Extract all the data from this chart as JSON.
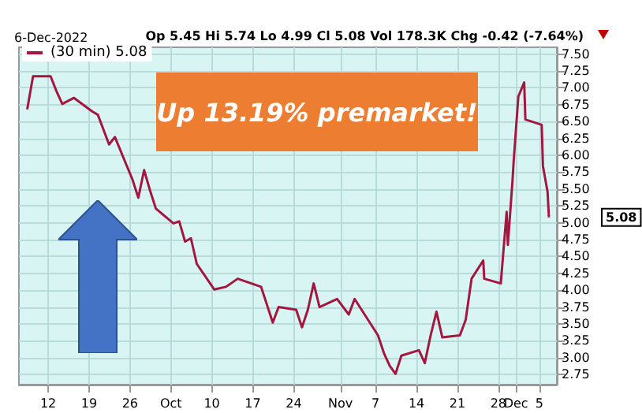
{
  "chart_data": {
    "type": "line",
    "title": "6-Dec-2022",
    "subtitle": "Op 5.45 Hi 5.74 Lo 4.99 Cl 5.08 Vol 178.3K Chg -0.42 (-7.64%)",
    "annotations": [
      "Up 13.19% premarket!",
      "5.08"
    ],
    "x": [
      "2022-09-08T10:00",
      "2022-09-09T10:00",
      "2022-09-12T10:00",
      "2022-09-13T10:00",
      "2022-09-14T10:00",
      "2022-09-16T10:00",
      "2022-09-19T12:00",
      "2022-09-20T12:00",
      "2022-09-22T10:00",
      "2022-09-23T10:00",
      "2022-09-26T10:00",
      "2022-09-27T10:00",
      "2022-09-28T10:00",
      "2022-09-29T10:00",
      "2022-09-30T10:00",
      "2022-10-03T10:00",
      "2022-10-04T10:00",
      "2022-10-05T10:00",
      "2022-10-06T10:00",
      "2022-10-07T10:00",
      "2022-10-10T10:00",
      "2022-10-12T10:00",
      "2022-10-14T10:00",
      "2022-10-18T10:00",
      "2022-10-20T10:00",
      "2022-10-21T10:00",
      "2022-10-24T10:00",
      "2022-10-25T10:00",
      "2022-10-26T10:00",
      "2022-10-27T10:00",
      "2022-10-28T10:00",
      "2022-10-31T10:00",
      "2022-11-02T10:00",
      "2022-11-03T10:00",
      "2022-11-07T10:00",
      "2022-11-08T10:00",
      "2022-11-09T10:00",
      "2022-11-10T10:00",
      "2022-11-11T10:00",
      "2022-11-14T10:00",
      "2022-11-15T10:00",
      "2022-11-16T10:00",
      "2022-11-17T10:00",
      "2022-11-18T10:00",
      "2022-11-21T10:00",
      "2022-11-22T10:00",
      "2022-11-23T10:00",
      "2022-11-25T10:00",
      "2022-11-25T14:00",
      "2022-11-28T10:00",
      "2022-11-29T10:00",
      "2022-11-29T15:00",
      "2022-11-30T10:00",
      "2022-11-30T15:00",
      "2022-12-01T10:00",
      "2022-12-02T10:00",
      "2022-12-02T15:00",
      "2022-12-05T10:00",
      "2022-12-05T15:00",
      "2022-12-06T10:00",
      "2022-12-06T15:30"
    ],
    "series": [
      {
        "name": "(30 min) 5.08",
        "color": "#a3173f",
        "values": [
          6.68,
          7.17,
          7.17,
          6.95,
          6.76,
          6.85,
          6.65,
          6.6,
          6.16,
          6.27,
          5.64,
          5.37,
          5.78,
          5.48,
          5.21,
          4.99,
          5.02,
          4.72,
          4.77,
          4.39,
          4.01,
          4.05,
          4.17,
          4.05,
          3.52,
          3.75,
          3.71,
          3.45,
          3.71,
          4.1,
          3.75,
          3.87,
          3.64,
          3.87,
          3.33,
          3.07,
          2.88,
          2.76,
          3.03,
          3.11,
          2.92,
          3.33,
          3.68,
          3.3,
          3.33,
          3.56,
          4.17,
          4.44,
          4.17,
          4.1,
          5.16,
          4.67,
          5.62,
          5.92,
          6.87,
          7.08,
          6.53,
          6.45,
          5.84,
          5.46,
          5.08
        ]
      }
    ],
    "xlim": [
      "2022-09-07",
      "2022-12-08"
    ],
    "xticks": [
      {
        "value": "2022-09-12",
        "label": "12"
      },
      {
        "value": "2022-09-19",
        "label": "19"
      },
      {
        "value": "2022-09-26",
        "label": "26"
      },
      {
        "value": "2022-10-03",
        "label": "Oct"
      },
      {
        "value": "2022-10-10",
        "label": "10"
      },
      {
        "value": "2022-10-17",
        "label": "17"
      },
      {
        "value": "2022-10-24",
        "label": "24"
      },
      {
        "value": "2022-11-01",
        "label": "Nov"
      },
      {
        "value": "2022-11-07",
        "label": "7"
      },
      {
        "value": "2022-11-14",
        "label": "14"
      },
      {
        "value": "2022-11-21",
        "label": "21"
      },
      {
        "value": "2022-11-28",
        "label": "28"
      },
      {
        "value": "2022-12-01",
        "label": "Dec"
      },
      {
        "value": "2022-12-05",
        "label": "5"
      }
    ],
    "ylim": [
      2.6,
      7.6
    ],
    "yticks": [
      {
        "value": 2.75,
        "label": "2.75"
      },
      {
        "value": 3,
        "label": "3.00"
      },
      {
        "value": 3.25,
        "label": "3.25"
      },
      {
        "value": 3.5,
        "label": "3.50"
      },
      {
        "value": 3.75,
        "label": "3.75"
      },
      {
        "value": 4,
        "label": "4.00"
      },
      {
        "value": 4.25,
        "label": "4.25"
      },
      {
        "value": 4.5,
        "label": "4.50"
      },
      {
        "value": 4.75,
        "label": "4.75"
      },
      {
        "value": 5,
        "label": "5.00"
      },
      {
        "value": 5.25,
        "label": "5.25"
      },
      {
        "value": 5.5,
        "label": "5.50"
      },
      {
        "value": 5.75,
        "label": "5.75"
      },
      {
        "value": 6,
        "label": "6.00"
      },
      {
        "value": 6.25,
        "label": "6.25"
      },
      {
        "value": 6.5,
        "label": "6.50"
      },
      {
        "value": 6.75,
        "label": "6.75"
      },
      {
        "value": 7,
        "label": "7.00"
      },
      {
        "value": 7.25,
        "label": "7.25"
      },
      {
        "value": 7.5,
        "label": "7.50"
      }
    ],
    "grid": true,
    "legend": "top left",
    "marker": "none",
    "line_style": "solid"
  }
}
